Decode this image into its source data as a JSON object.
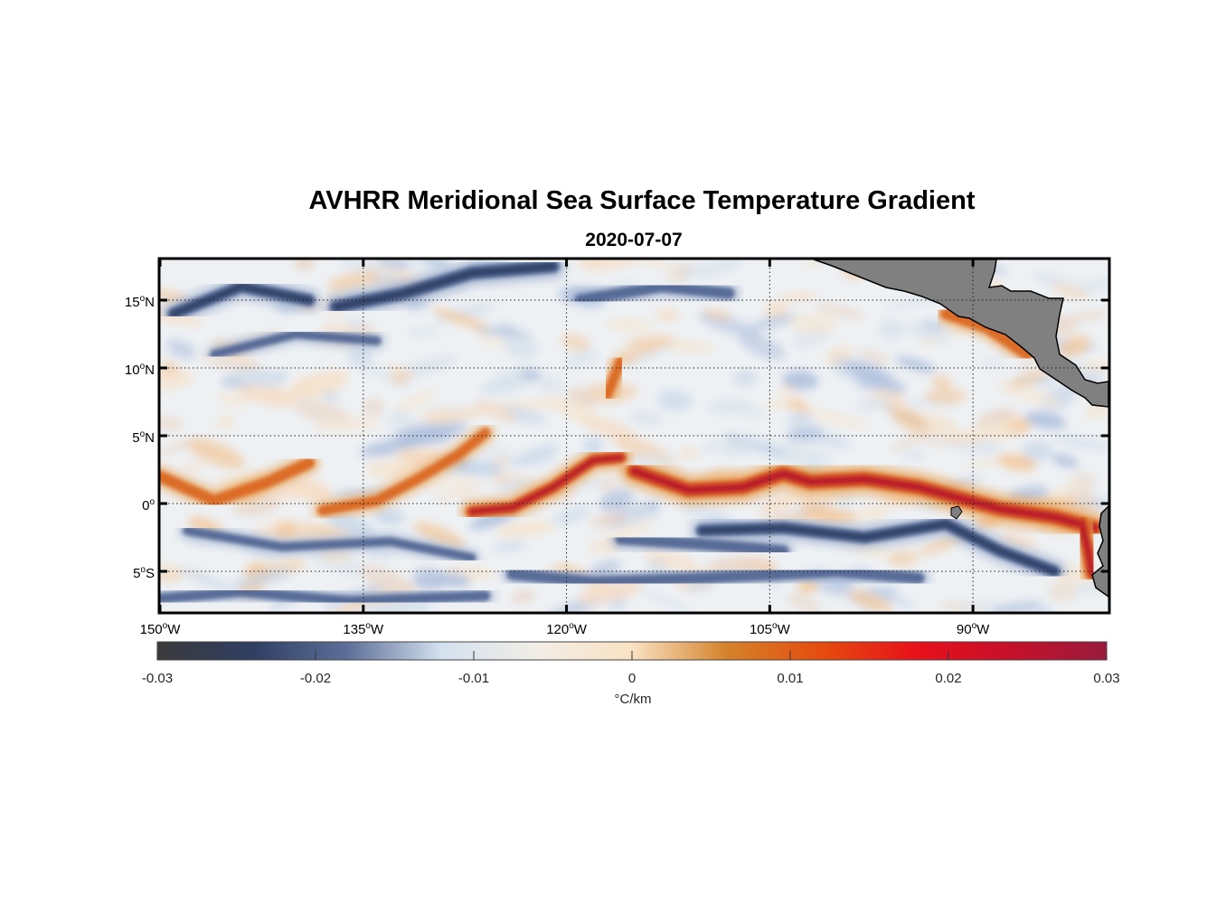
{
  "title": "AVHRR Meridional Sea Surface Temperature Gradient",
  "subtitle": "2020-07-07",
  "map": {
    "lon_range": [
      -150,
      -80
    ],
    "lat_range": [
      -8,
      18
    ],
    "x_ticks": [
      {
        "lon": -150,
        "num": "150",
        "hemi": "W"
      },
      {
        "lon": -135,
        "num": "135",
        "hemi": "W"
      },
      {
        "lon": -120,
        "num": "120",
        "hemi": "W"
      },
      {
        "lon": -105,
        "num": "105",
        "hemi": "W"
      },
      {
        "lon": -90,
        "num": "90",
        "hemi": "W"
      }
    ],
    "y_ticks": [
      {
        "lat": 15,
        "num": "15",
        "hemi": "N"
      },
      {
        "lat": 10,
        "num": "10",
        "hemi": "N"
      },
      {
        "lat": 5,
        "num": "5",
        "hemi": "N"
      },
      {
        "lat": 0,
        "num": "0",
        "hemi": ""
      },
      {
        "lat": -5,
        "num": "5",
        "hemi": "S"
      }
    ],
    "land_color": "#808080",
    "features": [
      {
        "name": "equatorial-front-west",
        "kind": "pos",
        "strength": 0.9,
        "pts": [
          [
            -150,
            2
          ],
          [
            -146,
            0.2
          ],
          [
            -142,
            1.6
          ],
          [
            -139,
            3
          ]
        ]
      },
      {
        "name": "equatorial-front-west-2",
        "kind": "pos",
        "strength": 0.8,
        "pts": [
          [
            -138,
            -0.5
          ],
          [
            -134,
            0.2
          ],
          [
            -131,
            1.8
          ],
          [
            -128,
            3.6
          ],
          [
            -126,
            5.2
          ]
        ]
      },
      {
        "name": "equatorial-front-central",
        "kind": "pos",
        "strength": 1.0,
        "pts": [
          [
            -127,
            -0.6
          ],
          [
            -124,
            -0.3
          ],
          [
            -121,
            1.2
          ],
          [
            -118,
            3.2
          ],
          [
            -116,
            3.4
          ]
        ]
      },
      {
        "name": "equatorial-front-east",
        "kind": "pos",
        "strength": 1.3,
        "pts": [
          [
            -115,
            2.4
          ],
          [
            -111,
            1.0
          ],
          [
            -107,
            1.2
          ],
          [
            -104,
            2.2
          ],
          [
            -102,
            1.6
          ],
          [
            -98,
            1.8
          ],
          [
            -94,
            1.2
          ],
          [
            -91,
            0.4
          ],
          [
            -88,
            -0.4
          ],
          [
            -84,
            -1.0
          ],
          [
            -81,
            -1.8
          ]
        ]
      },
      {
        "name": "coastal-front",
        "kind": "pos",
        "strength": 1.1,
        "pts": [
          [
            -82,
            -1.4
          ],
          [
            -81.5,
            -3.5
          ],
          [
            -81.2,
            -5.2
          ]
        ]
      },
      {
        "name": "tiw-north-1",
        "kind": "pos",
        "strength": 0.8,
        "pts": [
          [
            -117,
            8
          ],
          [
            -116,
            10.5
          ]
        ]
      },
      {
        "name": "gulf-front",
        "kind": "pos",
        "strength": 0.9,
        "pts": [
          [
            -92,
            14
          ],
          [
            -89,
            13
          ],
          [
            -86,
            11
          ]
        ]
      },
      {
        "name": "north-dark-1",
        "kind": "neg",
        "strength": 1.0,
        "pts": [
          [
            -149,
            14
          ],
          [
            -144,
            16
          ],
          [
            -139,
            15
          ]
        ]
      },
      {
        "name": "north-dark-2",
        "kind": "neg",
        "strength": 1.1,
        "pts": [
          [
            -137,
            14.5
          ],
          [
            -132,
            15.5
          ],
          [
            -127,
            17
          ],
          [
            -121,
            17.5
          ]
        ]
      },
      {
        "name": "north-dark-3",
        "kind": "neg",
        "strength": 0.9,
        "pts": [
          [
            -119,
            15
          ],
          [
            -113,
            16
          ],
          [
            -108,
            15.5
          ]
        ]
      },
      {
        "name": "north-dark-4",
        "kind": "neg",
        "strength": 0.7,
        "pts": [
          [
            -146,
            11
          ],
          [
            -140,
            12.5
          ],
          [
            -134,
            12
          ]
        ]
      },
      {
        "name": "south-dark-1",
        "kind": "neg",
        "strength": 1.0,
        "pts": [
          [
            -110,
            -2
          ],
          [
            -104,
            -1.8
          ],
          [
            -98,
            -2.5
          ],
          [
            -92,
            -1.5
          ],
          [
            -88,
            -3.5
          ],
          [
            -84,
            -5
          ]
        ]
      },
      {
        "name": "south-dark-2",
        "kind": "neg",
        "strength": 0.9,
        "pts": [
          [
            -116,
            -2.6
          ],
          [
            -110,
            -3
          ],
          [
            -104,
            -3.5
          ]
        ]
      },
      {
        "name": "south-dark-3",
        "kind": "neg",
        "strength": 0.9,
        "pts": [
          [
            -124,
            -5.2
          ],
          [
            -118,
            -5.8
          ],
          [
            -110,
            -5.5
          ],
          [
            -100,
            -5
          ],
          [
            -94,
            -5.5
          ]
        ]
      },
      {
        "name": "south-dark-4",
        "kind": "neg",
        "strength": 0.7,
        "pts": [
          [
            -148,
            -2
          ],
          [
            -141,
            -3.2
          ],
          [
            -133,
            -2.8
          ],
          [
            -127,
            -4
          ]
        ]
      },
      {
        "name": "south-dark-5",
        "kind": "neg",
        "strength": 0.8,
        "pts": [
          [
            -150,
            -7
          ],
          [
            -144,
            -6.5
          ],
          [
            -136,
            -7.2
          ],
          [
            -126,
            -6.8
          ]
        ]
      }
    ]
  },
  "colorbar": {
    "ticks": [
      "-0.03",
      "-0.02",
      "-0.01",
      "0",
      "0.01",
      "0.02",
      "0.03"
    ],
    "tick_values": [
      -0.03,
      -0.02,
      -0.01,
      0,
      0.01,
      0.02,
      0.03
    ],
    "label": "°C/km",
    "colors": [
      "#3a3a3a",
      "#2f3e63",
      "#5d6f98",
      "#d4e1ef",
      "#f2ede6",
      "#f9e2c3",
      "#d5822b",
      "#e54c0e",
      "#e8101b",
      "#c5102a",
      "#991b3d"
    ]
  }
}
